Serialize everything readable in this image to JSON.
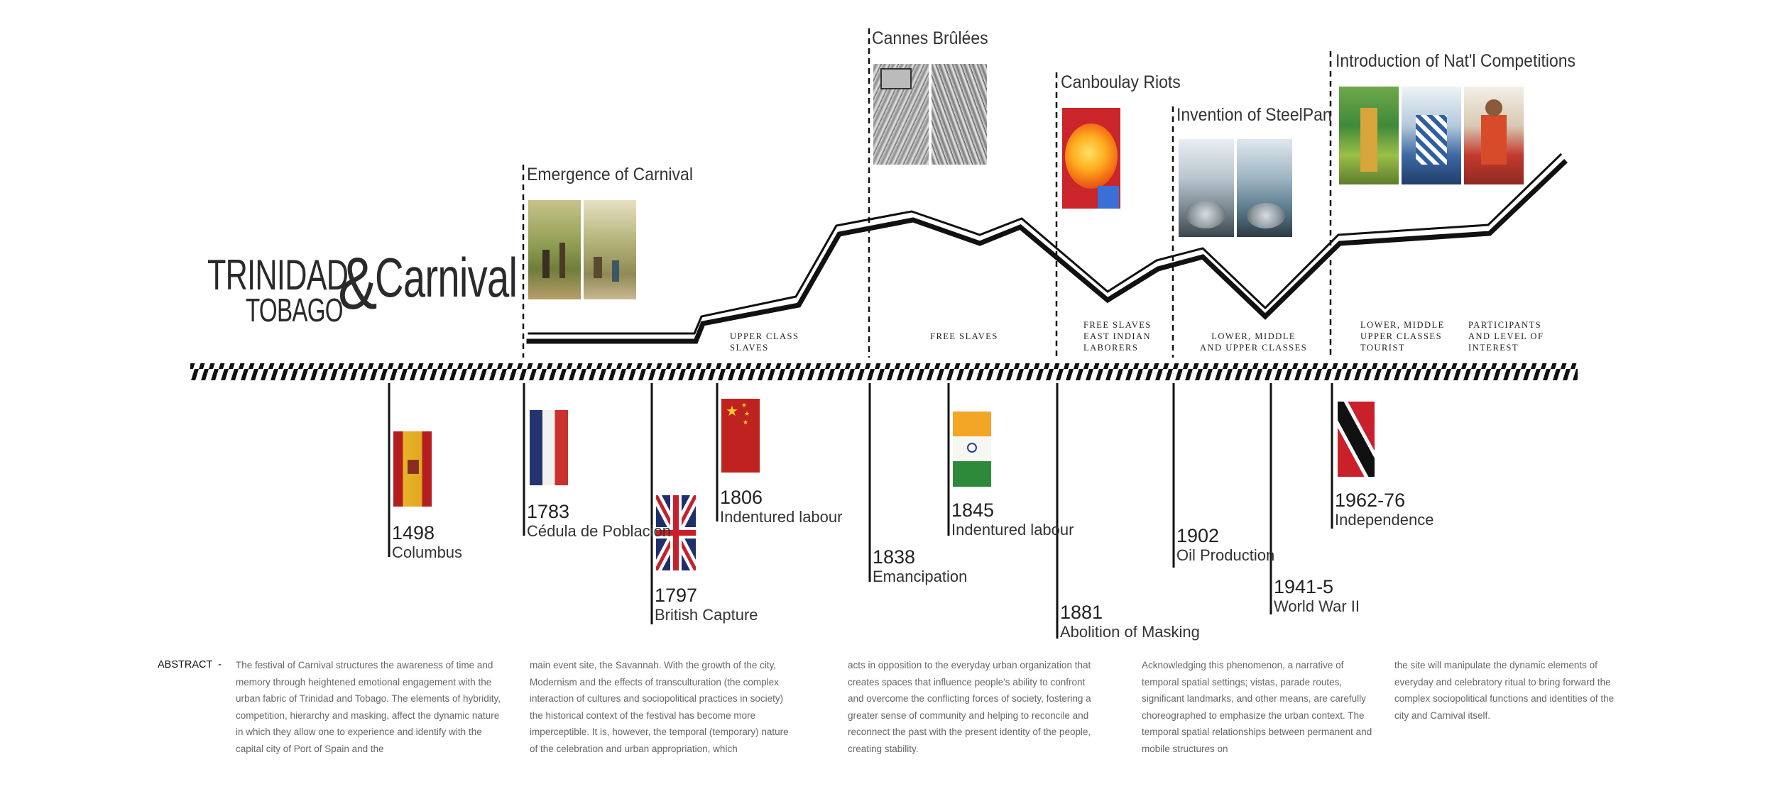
{
  "title": {
    "trinidad": "TRINIDAD",
    "tobago": "TOBAGO",
    "ampersand": "&",
    "carnival": "Carnival"
  },
  "upper_events": [
    {
      "title": "Emergence of Carnival"
    },
    {
      "title": "Cannes Brûlées"
    },
    {
      "title": "Canboulay Riots"
    },
    {
      "title": "Invention of SteelPan"
    },
    {
      "title": "Introduction of Nat'l Competitions"
    }
  ],
  "class_labels": [
    {
      "text": "UPPER CLASS\n        SLAVES"
    },
    {
      "text": "FREE SLAVES"
    },
    {
      "text": "FREE SLAVES\nEAST INDIAN\n   LABORERS"
    },
    {
      "text": "LOWER, MIDDLE\nAND UPPER CLASSES"
    },
    {
      "text": "LOWER, MIDDLE\nUPPER CLASSES\nTOURIST"
    },
    {
      "text": "PARTICIPANTS\nAND LEVEL OF\nINTEREST"
    }
  ],
  "timeline_events": [
    {
      "year": "1498",
      "label": "Columbus",
      "flag": "spain-flag-icon"
    },
    {
      "year": "1783",
      "label": "Cédula de Poblacion",
      "flag": "france-flag-icon"
    },
    {
      "year": "1797",
      "label": "British Capture",
      "flag": "uk-flag-icon"
    },
    {
      "year": "1806",
      "label": "Indentured labour",
      "flag": "china-flag-icon"
    },
    {
      "year": "1838",
      "label": "Emancipation"
    },
    {
      "year": "1845",
      "label": "Indentured labour",
      "flag": "india-flag-icon"
    },
    {
      "year": "1881",
      "label": "Abolition of Masking"
    },
    {
      "year": "1902",
      "label": "Oil Production"
    },
    {
      "year": "1941-5",
      "label": "World War II"
    },
    {
      "year": "1962-76",
      "label": "Independence",
      "flag": "trinidad-flag-icon"
    }
  ],
  "abstract": {
    "heading": "ABSTRACT  -",
    "columns": [
      "The festival of Carnival structures the awareness of time and memory through heightened emotional engagement with the urban fabric of Trinidad and Tobago. The elements of hybridity, competition, hierarchy and masking, affect the dynamic nature in which they allow one to experience and identify with the capital city of Port of Spain and the",
      "main event site, the Savannah. With the growth of the city, Modernism and the effects of transculturation (the complex interaction of cultures and sociopolitical practices in society) the historical context of the festival has become more imperceptible. It is, however, the temporal (temporary) nature of the celebration and urban appropriation, which",
      "acts in opposition to the everyday urban organization that creates spaces that influence people's ability to confront and overcome the conflicting forces of society, fostering a greater sense of community and helping to reconcile and reconnect the past with the present identity of the people, creating stability.",
      "Acknowledging this phenomenon, a narrative of temporal spatial settings; vistas, parade routes, significant landmarks, and other means, are carefully choreographed to emphasize the urban context. The temporal spatial relationships between permanent and mobile structures on",
      "the site will manipulate the dynamic elements of everyday and celebratory ritual to bring forward the complex sociopolitical functions and identities of the city and Carnival itself."
    ]
  },
  "colors": {
    "line": "#111111",
    "text": "#222222",
    "abstract_text": "#666666"
  }
}
